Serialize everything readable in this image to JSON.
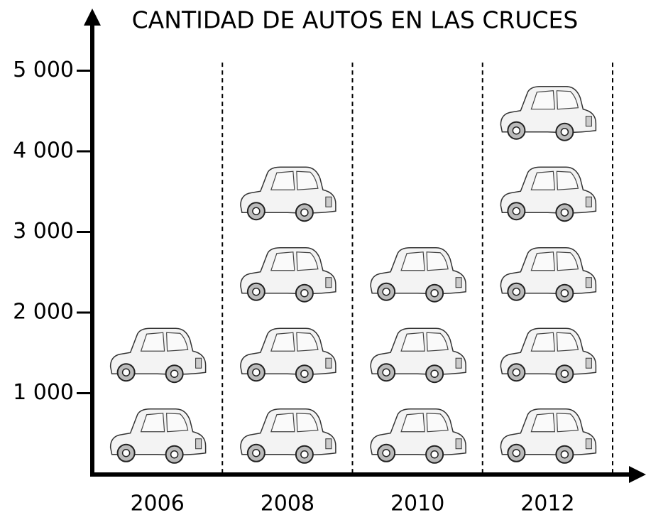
{
  "chart_data": {
    "type": "pictograph",
    "title": "CANTIDAD DE AUTOS EN LAS CRUCES",
    "categories": [
      "2006",
      "2008",
      "2010",
      "2012"
    ],
    "values": [
      2000,
      4000,
      3000,
      5000
    ],
    "ylim": [
      0,
      5700
    ],
    "yticks": [
      {
        "value": 1000,
        "label": "1 000"
      },
      {
        "value": 2000,
        "label": "2 000"
      },
      {
        "value": 3000,
        "label": "3 000"
      },
      {
        "value": 4000,
        "label": "4 000"
      },
      {
        "value": 5000,
        "label": "5 000"
      }
    ]
  }
}
